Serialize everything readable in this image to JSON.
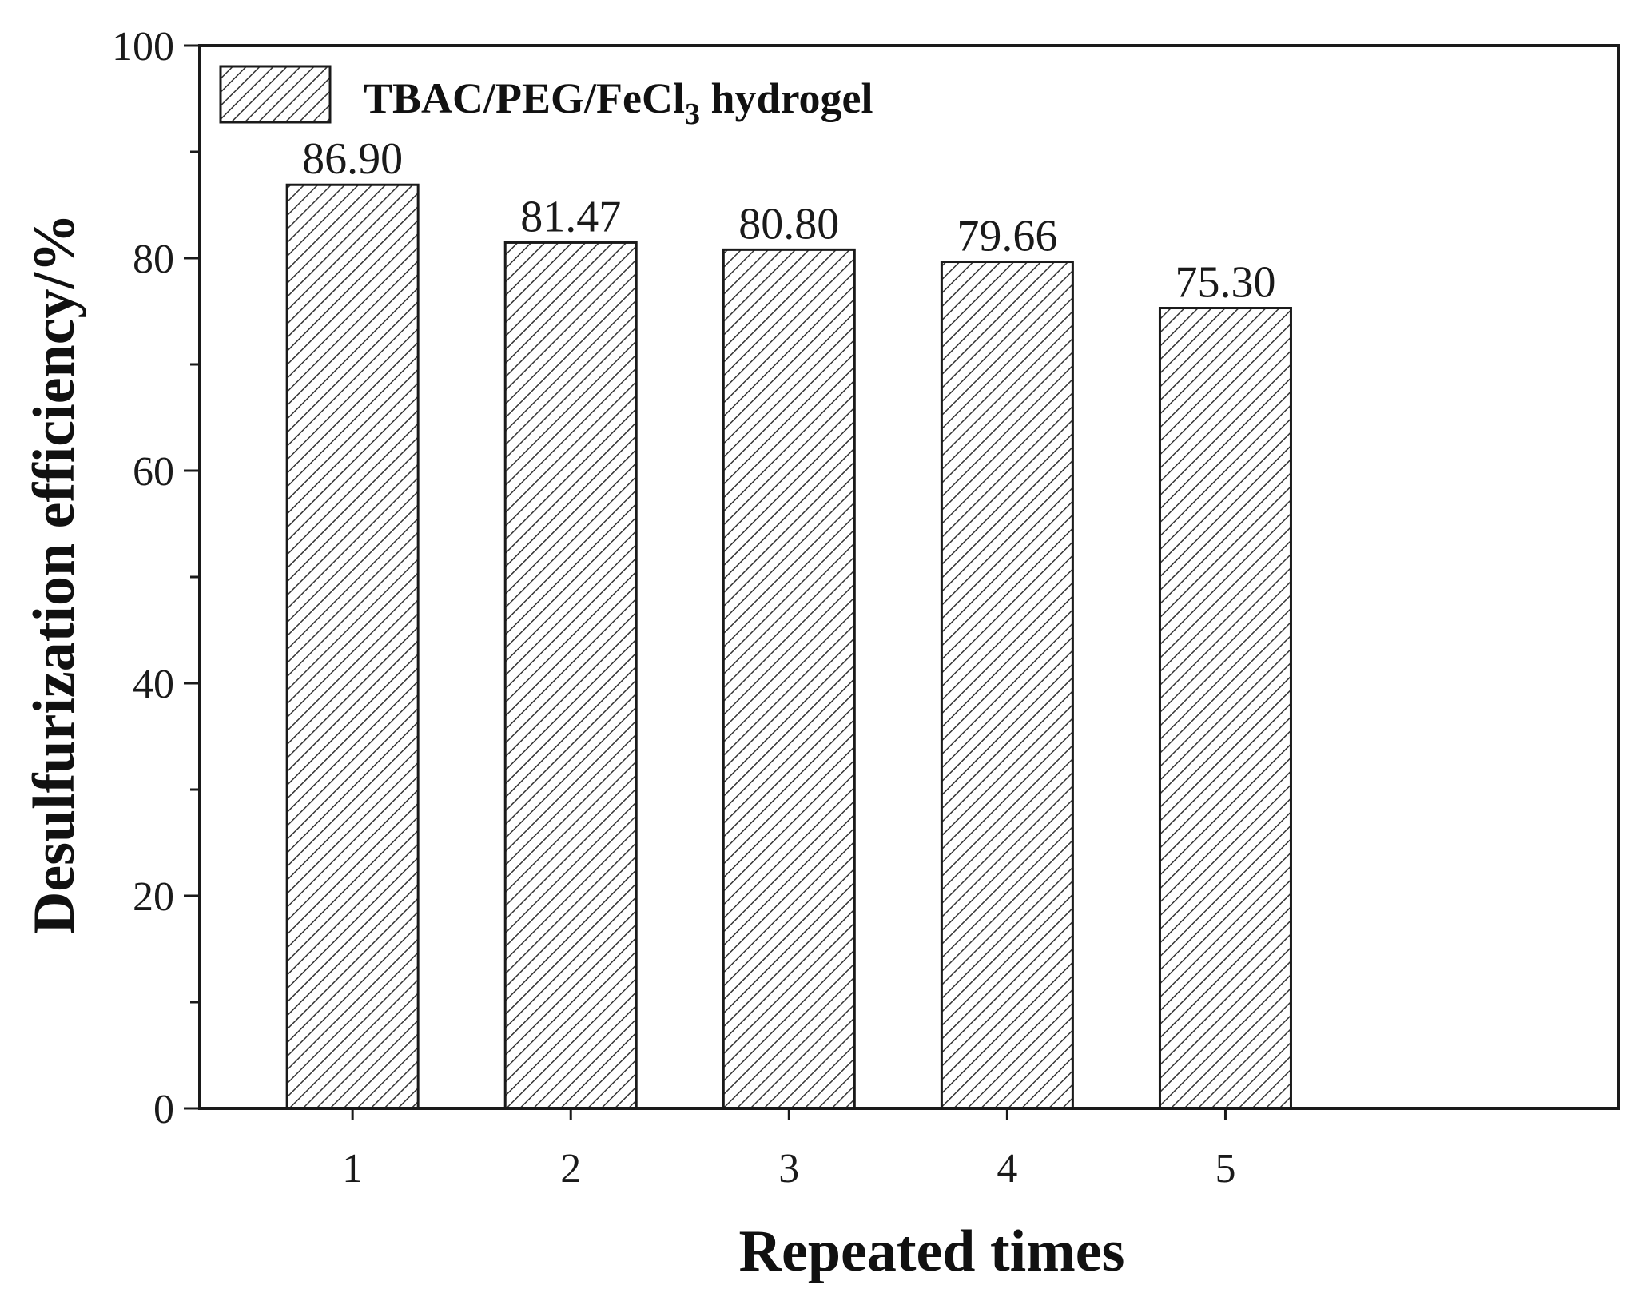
{
  "chart_data": {
    "type": "bar",
    "categories": [
      "1",
      "2",
      "3",
      "4",
      "5"
    ],
    "series": [
      {
        "name": "TBAC/PEG/FeCl3 hydrogel",
        "values": [
          86.9,
          81.47,
          80.8,
          79.66,
          75.3
        ]
      }
    ],
    "data_labels": [
      "86.90",
      "81.47",
      "80.80",
      "79.66",
      "75.30"
    ],
    "xlabel": "Repeated times",
    "ylabel": "Desulfurization efficiency/%",
    "ylim": [
      0,
      100
    ],
    "yticks": [
      "0",
      "20",
      "40",
      "60",
      "80",
      "100"
    ],
    "x_range": [
      0.3,
      6.8
    ],
    "bar_pattern": "diagonal-hatch",
    "grid": false,
    "legend_position": "top-left",
    "legend": {
      "text_main": "TBAC/PEG/FeCl",
      "text_sub": "3",
      "text_tail": " hydrogel"
    },
    "colors": {
      "bar_fill": "#ffffff",
      "hatch": "#333333",
      "axis": "#1a1a1a"
    }
  }
}
